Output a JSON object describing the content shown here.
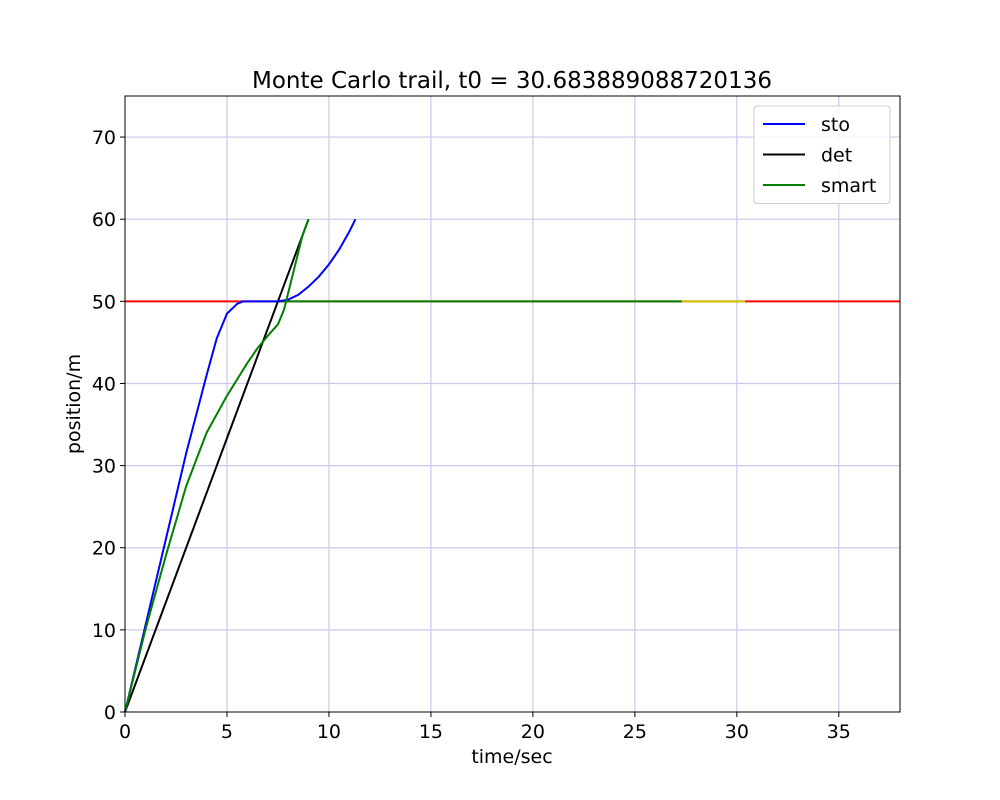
{
  "chart_data": {
    "type": "line",
    "title": "Monte Carlo trail, t0 = 30.683889088720136",
    "xlabel": "time/sec",
    "ylabel": "position/m",
    "xlim": [
      0,
      38
    ],
    "ylim": [
      0,
      75
    ],
    "xticks": [
      0,
      5,
      10,
      15,
      20,
      25,
      30,
      35
    ],
    "yticks": [
      0,
      10,
      20,
      30,
      40,
      50,
      60,
      70
    ],
    "grid": true,
    "grid_color": "#c8c8f0",
    "legend_position": "top-right",
    "series": [
      {
        "name": "sto",
        "color": "#0000ff",
        "in_legend": true,
        "x": [
          0,
          1,
          2,
          3,
          4,
          4.5,
          5,
          5.5,
          5.8,
          6,
          7,
          7.5,
          8,
          8.5,
          9,
          9.5,
          10,
          10.5,
          11,
          11.3
        ],
        "y": [
          0,
          10.5,
          21,
          31.5,
          41,
          45.5,
          48.5,
          49.7,
          50,
          50,
          50,
          50,
          50.2,
          50.8,
          51.8,
          53,
          54.5,
          56.3,
          58.5,
          60
        ]
      },
      {
        "name": "det",
        "color": "#000000",
        "in_legend": true,
        "x": [
          0,
          9
        ],
        "y": [
          0,
          60
        ]
      },
      {
        "name": "smart",
        "color": "#008000",
        "in_legend": true,
        "x": [
          0,
          1,
          2,
          3,
          4,
          5,
          5.5,
          6,
          6.5,
          7,
          7.5,
          7.8,
          8.1,
          8.4,
          8.7,
          9
        ],
        "y": [
          0,
          10,
          19,
          27.5,
          34,
          38.5,
          40.5,
          42.5,
          44.3,
          45.8,
          47.2,
          49,
          52,
          55,
          58,
          60
        ]
      },
      {
        "name": "",
        "color": "#ff0000",
        "in_legend": false,
        "x": [
          0,
          38
        ],
        "y": [
          50,
          50
        ]
      },
      {
        "name": "",
        "color": "#008000",
        "in_legend": false,
        "x": [
          7.5,
          27.3
        ],
        "y": [
          50,
          50
        ]
      },
      {
        "name": "",
        "color": "#cccc00",
        "in_legend": false,
        "x": [
          27.3,
          30.4
        ],
        "y": [
          50,
          50
        ]
      }
    ]
  }
}
